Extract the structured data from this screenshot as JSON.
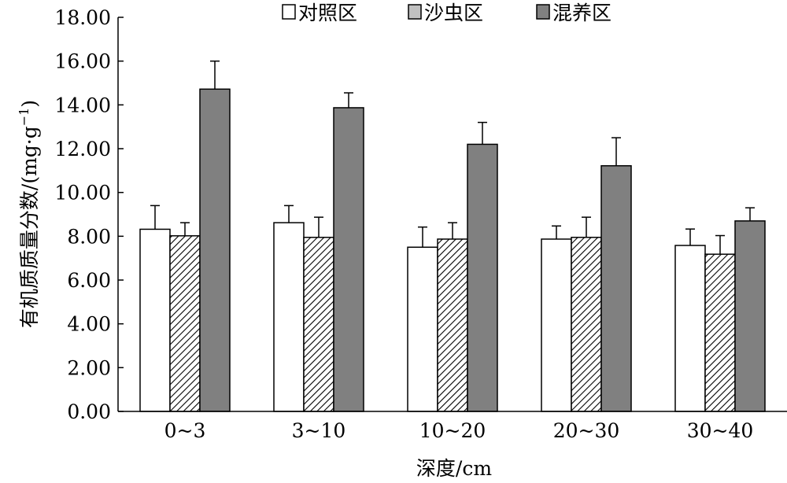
{
  "chart_data": {
    "type": "bar",
    "categories": [
      "0~3",
      "3~10",
      "10~20",
      "20~30",
      "30~40"
    ],
    "series": [
      {
        "name": "对照区",
        "values": [
          8.32,
          8.62,
          7.5,
          7.87,
          7.58
        ],
        "errors": [
          1.08,
          0.78,
          0.92,
          0.6,
          0.75
        ],
        "fill": "#ffffff",
        "pattern": "none"
      },
      {
        "name": "沙虫区",
        "values": [
          8.02,
          7.95,
          7.87,
          7.95,
          7.18
        ],
        "errors": [
          0.6,
          0.92,
          0.75,
          0.92,
          0.85
        ],
        "fill": "#ffffff",
        "pattern": "hatch"
      },
      {
        "name": "混养区",
        "values": [
          14.72,
          13.87,
          12.2,
          11.22,
          8.7
        ],
        "errors": [
          1.28,
          0.68,
          1.0,
          1.28,
          0.6
        ],
        "fill": "#808080",
        "pattern": "none"
      }
    ],
    "legend_swatch_colors": [
      "#ffffff",
      "#c0c0c0",
      "#808080"
    ],
    "ylim": [
      0,
      18
    ],
    "yticks": [
      "0.00",
      "2.00",
      "4.00",
      "6.00",
      "8.00",
      "10.00",
      "12.00",
      "14.00",
      "16.00",
      "18.00"
    ],
    "xlabel": "深度/cm",
    "ylabel_main": "有机质质量分数/(mg·g",
    "ylabel_sup": "−1",
    "ylabel_close": ")",
    "grid": false,
    "legend_position": "top"
  }
}
